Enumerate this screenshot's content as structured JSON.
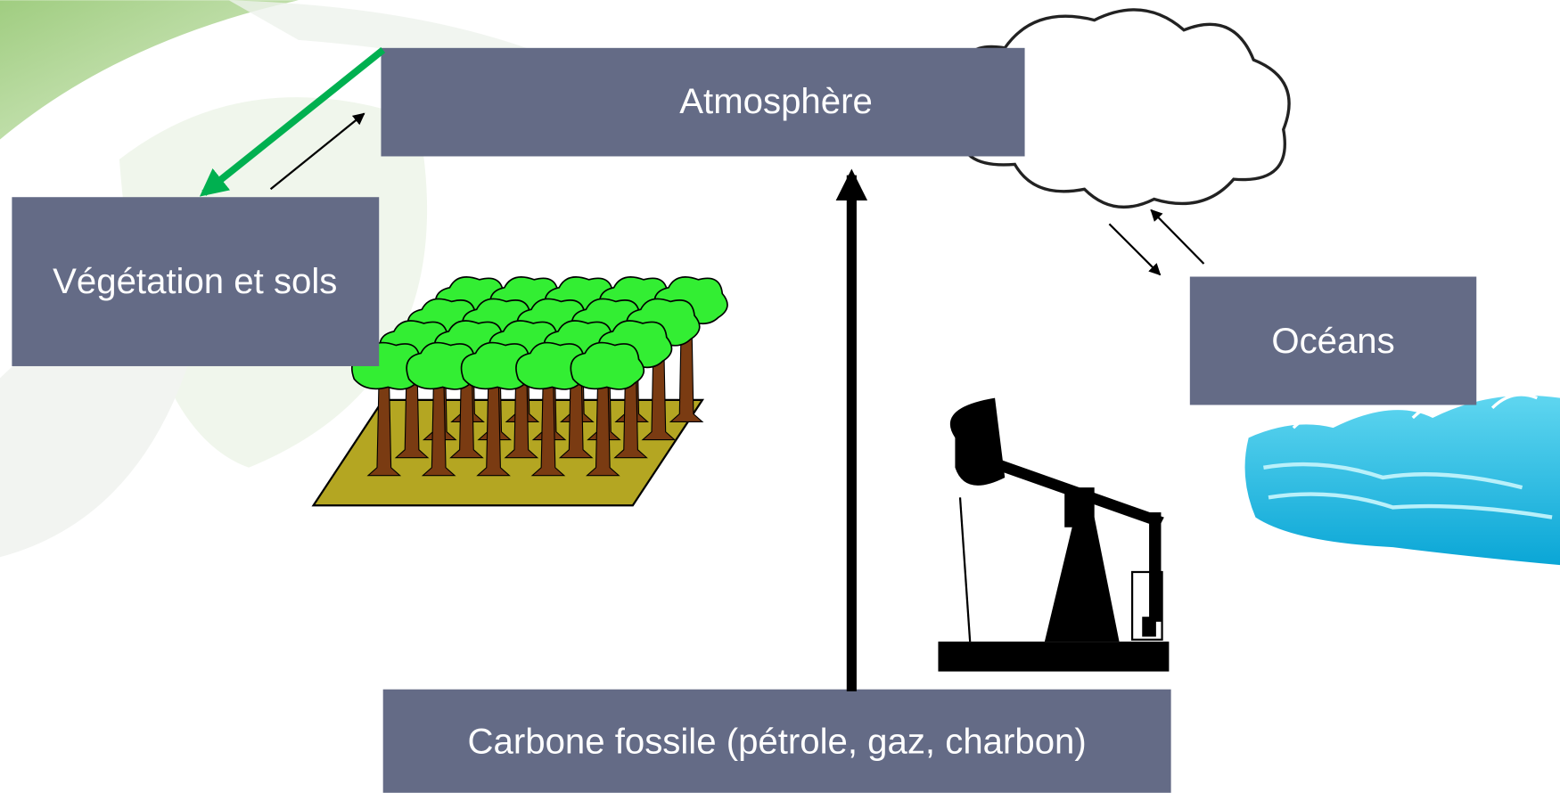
{
  "nodes": [
    {
      "label": "Atmosphère"
    },
    {
      "label": "Végétation et sols"
    },
    {
      "label": "Océans"
    },
    {
      "label": "Carbone fossile (pétrole, gaz, charbon)"
    }
  ]
}
